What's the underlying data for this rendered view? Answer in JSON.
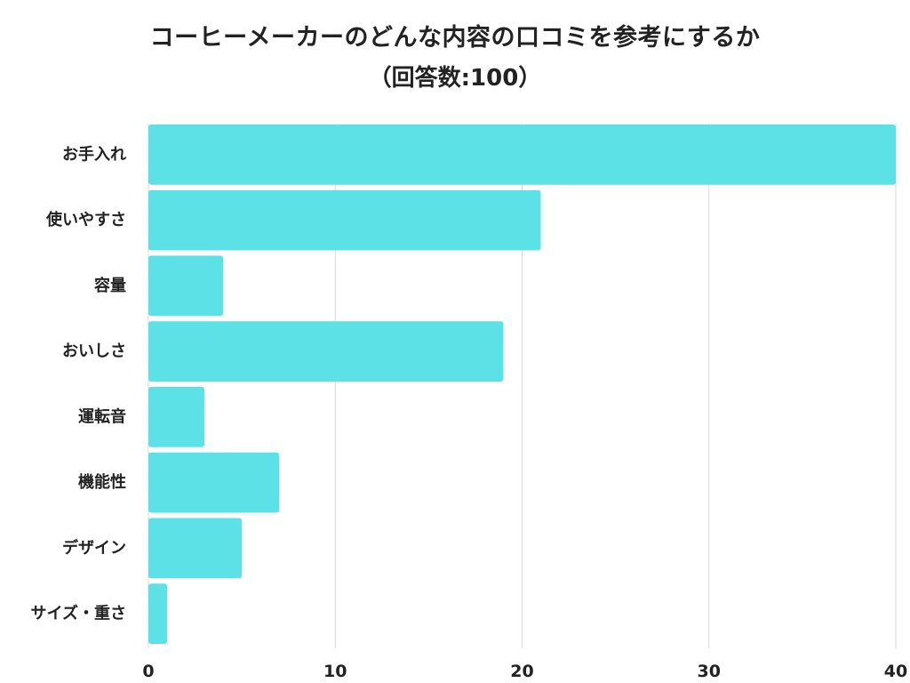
{
  "chart_data": {
    "type": "bar",
    "orientation": "horizontal",
    "title": "コーヒーメーカーのどんな内容の口コミを参考にするか",
    "subtitle": "（回答数:100）",
    "categories": [
      "お手入れ",
      "使いやすさ",
      "容量",
      "おいしさ",
      "運転音",
      "機能性",
      "デザイン",
      "サイズ・重さ"
    ],
    "values": [
      40,
      21,
      4,
      19,
      3,
      7,
      5,
      1
    ],
    "xlim": [
      0,
      40
    ],
    "xticks": [
      0,
      10,
      20,
      30,
      40
    ],
    "xlabel": "",
    "ylabel": "",
    "grid": "vertical",
    "legend": "none",
    "bar_color": "#5ce1e6",
    "grid_color": "#d9d9d9"
  }
}
